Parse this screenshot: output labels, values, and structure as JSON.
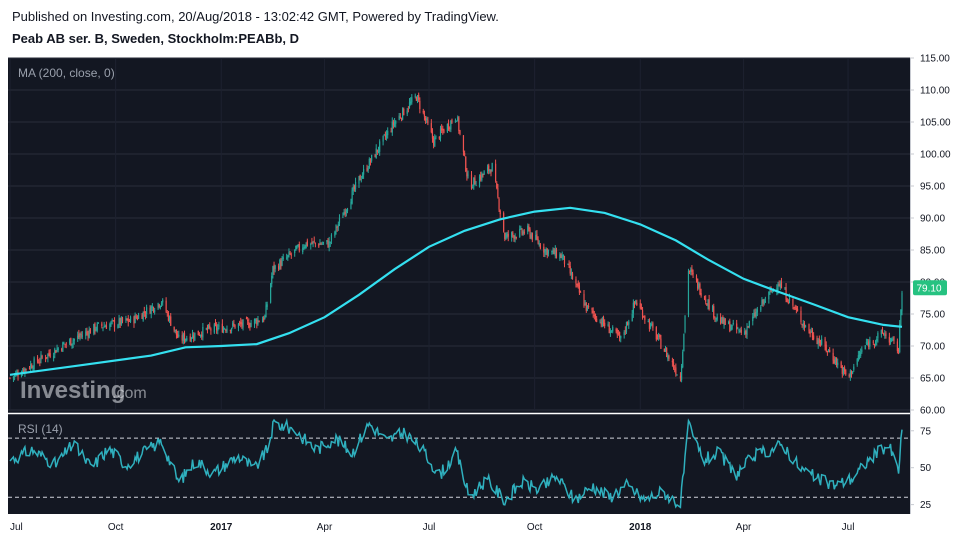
{
  "header": {
    "published": "Published on Investing.com, 20/Aug/2018 - 13:02:42 GMT, Powered by TradingView.",
    "symbol": "Peab AB ser. B, Sweden, Stockholm:PEABb, D"
  },
  "watermark": {
    "brand": "Investing",
    "suffix": ".com"
  },
  "colors": {
    "background": "#131722",
    "up": "#26a69a",
    "down": "#ef5350",
    "ma": "#34e0f0",
    "rsi": "#2fb0be",
    "last_price_badge": "#26c281"
  },
  "chart_data": [
    {
      "type": "candlestick",
      "pane": "price",
      "indicator_label": "MA (200, close, 0)",
      "last_price_label": "79.10",
      "x_ticks": [
        "Jul",
        "Oct",
        "2017",
        "Apr",
        "Jul",
        "Oct",
        "2018",
        "Apr",
        "Jul"
      ],
      "y_ticks": [
        "60.00",
        "65.00",
        "70.00",
        "75.00",
        "80.00",
        "85.00",
        "90.00",
        "95.00",
        "100.00",
        "105.00",
        "110.00",
        "115.00"
      ],
      "ylim": [
        60,
        115
      ],
      "close_path": [
        {
          "date": "2016-07-01",
          "close": 65.0
        },
        {
          "date": "2016-08-15",
          "close": 70.0
        },
        {
          "date": "2016-09-15",
          "close": 73.0
        },
        {
          "date": "2016-10-15",
          "close": 74.0
        },
        {
          "date": "2016-11-10",
          "close": 77.0
        },
        {
          "date": "2016-11-25",
          "close": 71.0
        },
        {
          "date": "2016-12-20",
          "close": 72.5
        },
        {
          "date": "2017-01-25",
          "close": 73.5
        },
        {
          "date": "2017-02-08",
          "close": 74.5
        },
        {
          "date": "2017-02-15",
          "close": 82.0
        },
        {
          "date": "2017-03-15",
          "close": 86.0
        },
        {
          "date": "2017-04-05",
          "close": 86.0
        },
        {
          "date": "2017-05-01",
          "close": 96.0
        },
        {
          "date": "2017-06-01",
          "close": 105.0
        },
        {
          "date": "2017-06-20",
          "close": 109.0
        },
        {
          "date": "2017-07-05",
          "close": 102.0
        },
        {
          "date": "2017-07-25",
          "close": 106.0
        },
        {
          "date": "2017-08-05",
          "close": 95.0
        },
        {
          "date": "2017-08-25",
          "close": 98.0
        },
        {
          "date": "2017-09-05",
          "close": 87.0
        },
        {
          "date": "2017-09-25",
          "close": 88.0
        },
        {
          "date": "2017-10-10",
          "close": 85.0
        },
        {
          "date": "2017-10-25",
          "close": 84.0
        },
        {
          "date": "2017-11-15",
          "close": 76.0
        },
        {
          "date": "2017-12-15",
          "close": 71.0
        },
        {
          "date": "2017-12-28",
          "close": 77.0
        },
        {
          "date": "2018-01-20",
          "close": 70.0
        },
        {
          "date": "2018-02-05",
          "close": 65.0
        },
        {
          "date": "2018-02-12",
          "close": 82.0
        },
        {
          "date": "2018-03-10",
          "close": 74.0
        },
        {
          "date": "2018-04-01",
          "close": 72.0
        },
        {
          "date": "2018-04-15",
          "close": 76.0
        },
        {
          "date": "2018-05-01",
          "close": 80.0
        },
        {
          "date": "2018-05-25",
          "close": 73.0
        },
        {
          "date": "2018-06-15",
          "close": 69.0
        },
        {
          "date": "2018-07-01",
          "close": 65.0
        },
        {
          "date": "2018-07-15",
          "close": 70.0
        },
        {
          "date": "2018-08-01",
          "close": 72.0
        },
        {
          "date": "2018-08-14",
          "close": 69.5
        },
        {
          "date": "2018-08-17",
          "close": 79.1
        }
      ],
      "ma_200": [
        {
          "date": "2016-07-01",
          "value": 65.5
        },
        {
          "date": "2016-09-01",
          "value": 67.0
        },
        {
          "date": "2016-11-01",
          "value": 68.5
        },
        {
          "date": "2016-12-01",
          "value": 69.8
        },
        {
          "date": "2017-01-01",
          "value": 70.0
        },
        {
          "date": "2017-02-01",
          "value": 70.3
        },
        {
          "date": "2017-03-01",
          "value": 72.0
        },
        {
          "date": "2017-04-01",
          "value": 74.5
        },
        {
          "date": "2017-05-01",
          "value": 78.0
        },
        {
          "date": "2017-06-01",
          "value": 82.0
        },
        {
          "date": "2017-07-01",
          "value": 85.5
        },
        {
          "date": "2017-08-01",
          "value": 88.0
        },
        {
          "date": "2017-09-01",
          "value": 89.8
        },
        {
          "date": "2017-10-01",
          "value": 91.0
        },
        {
          "date": "2017-11-01",
          "value": 91.6
        },
        {
          "date": "2017-12-01",
          "value": 90.8
        },
        {
          "date": "2018-01-01",
          "value": 89.0
        },
        {
          "date": "2018-02-01",
          "value": 86.5
        },
        {
          "date": "2018-03-01",
          "value": 83.5
        },
        {
          "date": "2018-04-01",
          "value": 80.5
        },
        {
          "date": "2018-05-01",
          "value": 78.5
        },
        {
          "date": "2018-06-01",
          "value": 76.5
        },
        {
          "date": "2018-07-01",
          "value": 74.5
        },
        {
          "date": "2018-08-01",
          "value": 73.3
        },
        {
          "date": "2018-08-17",
          "value": 73.0
        }
      ]
    },
    {
      "type": "line",
      "pane": "rsi",
      "indicator_label": "RSI (14)",
      "y_ticks": [
        "25",
        "50",
        "75"
      ],
      "ylim": [
        20,
        85
      ],
      "reference_lines": [
        30,
        70
      ],
      "points": [
        {
          "date": "2016-07-01",
          "value": 55
        },
        {
          "date": "2016-07-20",
          "value": 62
        },
        {
          "date": "2016-08-10",
          "value": 52
        },
        {
          "date": "2016-08-25",
          "value": 66
        },
        {
          "date": "2016-09-10",
          "value": 50
        },
        {
          "date": "2016-09-25",
          "value": 63
        },
        {
          "date": "2016-10-10",
          "value": 52
        },
        {
          "date": "2016-10-25",
          "value": 60
        },
        {
          "date": "2016-11-10",
          "value": 68
        },
        {
          "date": "2016-11-25",
          "value": 40
        },
        {
          "date": "2016-12-10",
          "value": 55
        },
        {
          "date": "2016-12-25",
          "value": 46
        },
        {
          "date": "2017-01-15",
          "value": 58
        },
        {
          "date": "2017-01-30",
          "value": 49
        },
        {
          "date": "2017-02-10",
          "value": 62
        },
        {
          "date": "2017-02-16",
          "value": 80
        },
        {
          "date": "2017-03-05",
          "value": 76
        },
        {
          "date": "2017-03-25",
          "value": 62
        },
        {
          "date": "2017-04-10",
          "value": 70
        },
        {
          "date": "2017-04-25",
          "value": 60
        },
        {
          "date": "2017-05-10",
          "value": 80
        },
        {
          "date": "2017-05-25",
          "value": 68
        },
        {
          "date": "2017-06-10",
          "value": 74
        },
        {
          "date": "2017-06-25",
          "value": 62
        },
        {
          "date": "2017-07-10",
          "value": 45
        },
        {
          "date": "2017-07-25",
          "value": 60
        },
        {
          "date": "2017-08-05",
          "value": 30
        },
        {
          "date": "2017-08-20",
          "value": 42
        },
        {
          "date": "2017-09-05",
          "value": 28
        },
        {
          "date": "2017-09-20",
          "value": 40
        },
        {
          "date": "2017-10-05",
          "value": 35
        },
        {
          "date": "2017-10-20",
          "value": 44
        },
        {
          "date": "2017-11-05",
          "value": 28
        },
        {
          "date": "2017-11-20",
          "value": 38
        },
        {
          "date": "2017-12-05",
          "value": 30
        },
        {
          "date": "2017-12-20",
          "value": 38
        },
        {
          "date": "2018-01-05",
          "value": 28
        },
        {
          "date": "2018-01-20",
          "value": 34
        },
        {
          "date": "2018-02-05",
          "value": 25
        },
        {
          "date": "2018-02-12",
          "value": 78
        },
        {
          "date": "2018-02-25",
          "value": 55
        },
        {
          "date": "2018-03-10",
          "value": 60
        },
        {
          "date": "2018-03-25",
          "value": 45
        },
        {
          "date": "2018-04-10",
          "value": 58
        },
        {
          "date": "2018-04-25",
          "value": 62
        },
        {
          "date": "2018-05-05",
          "value": 66
        },
        {
          "date": "2018-05-20",
          "value": 50
        },
        {
          "date": "2018-06-05",
          "value": 42
        },
        {
          "date": "2018-06-20",
          "value": 38
        },
        {
          "date": "2018-07-05",
          "value": 43
        },
        {
          "date": "2018-07-20",
          "value": 56
        },
        {
          "date": "2018-08-05",
          "value": 66
        },
        {
          "date": "2018-08-14",
          "value": 48
        },
        {
          "date": "2018-08-17",
          "value": 76
        }
      ]
    }
  ]
}
